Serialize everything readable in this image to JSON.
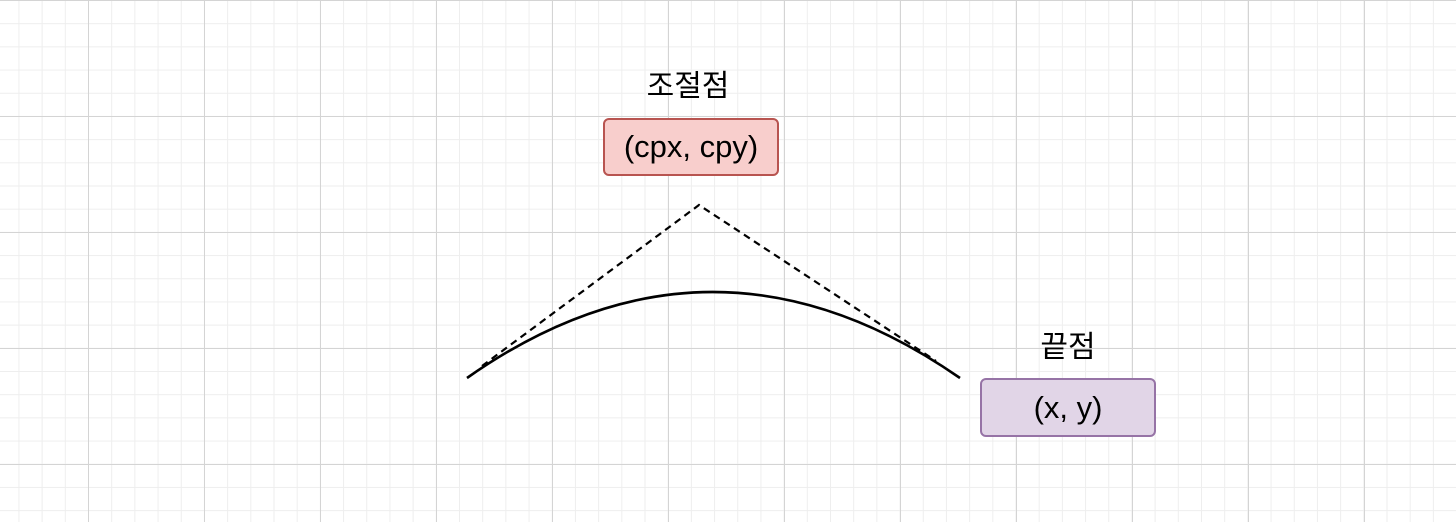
{
  "control_point": {
    "label": "조절점",
    "coords": "(cpx, cpy)",
    "fill": "#f8cecc",
    "border": "#b85450"
  },
  "end_point": {
    "label": "끝점",
    "coords": "(x, y)",
    "fill": "#e1d5e7",
    "border": "#9673a6"
  },
  "stroke_color": "#000000"
}
